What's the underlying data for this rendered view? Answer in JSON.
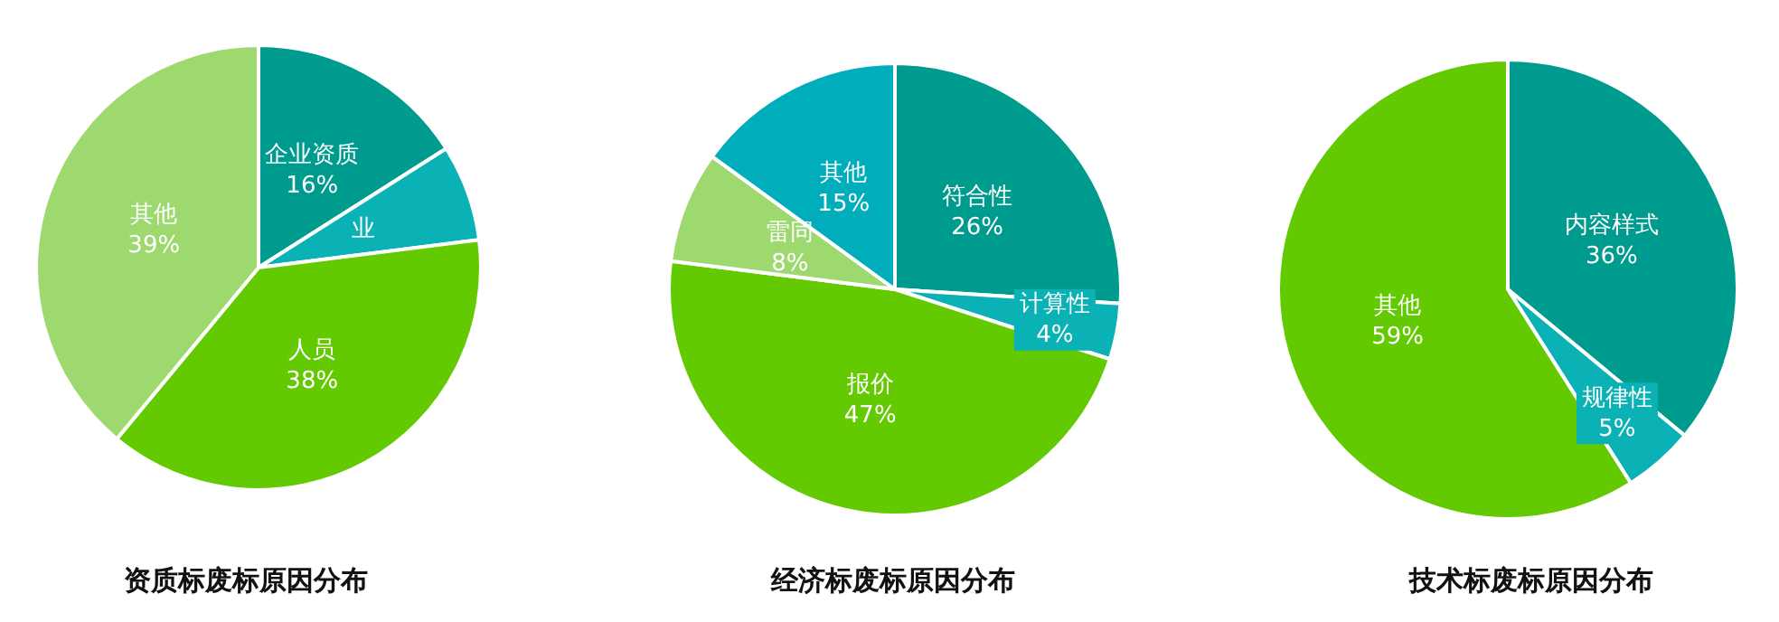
{
  "chart_data": [
    {
      "type": "pie",
      "title": "资质标废标原因分布",
      "categories": [
        "企业资质",
        "业",
        "人员",
        "其他"
      ],
      "values": [
        16,
        7,
        38,
        39
      ],
      "colors": [
        "#009b8f",
        "#0ab1b5",
        "#63c900",
        "#9dd96f"
      ],
      "value_labels": [
        "16%",
        null,
        "38%",
        "39%"
      ]
    },
    {
      "type": "pie",
      "title": "经济标废标原因分布",
      "categories": [
        "符合性",
        "计算性",
        "报价",
        "雷同",
        "其他"
      ],
      "values": [
        26,
        4,
        47,
        8,
        15
      ],
      "colors": [
        "#009b8f",
        "#0ab1b5",
        "#63c900",
        "#9dd96f",
        "#00aebb"
      ],
      "value_labels": [
        "26%",
        "4%",
        "47%",
        "8%",
        "15%"
      ]
    },
    {
      "type": "pie",
      "title": "技术标废标原因分布",
      "categories": [
        "内容样式",
        "规律性",
        "其他"
      ],
      "values": [
        36,
        5,
        59
      ],
      "colors": [
        "#009b8f",
        "#0ab1b5",
        "#63c900"
      ],
      "value_labels": [
        "36%",
        "5%",
        "59%"
      ]
    }
  ]
}
